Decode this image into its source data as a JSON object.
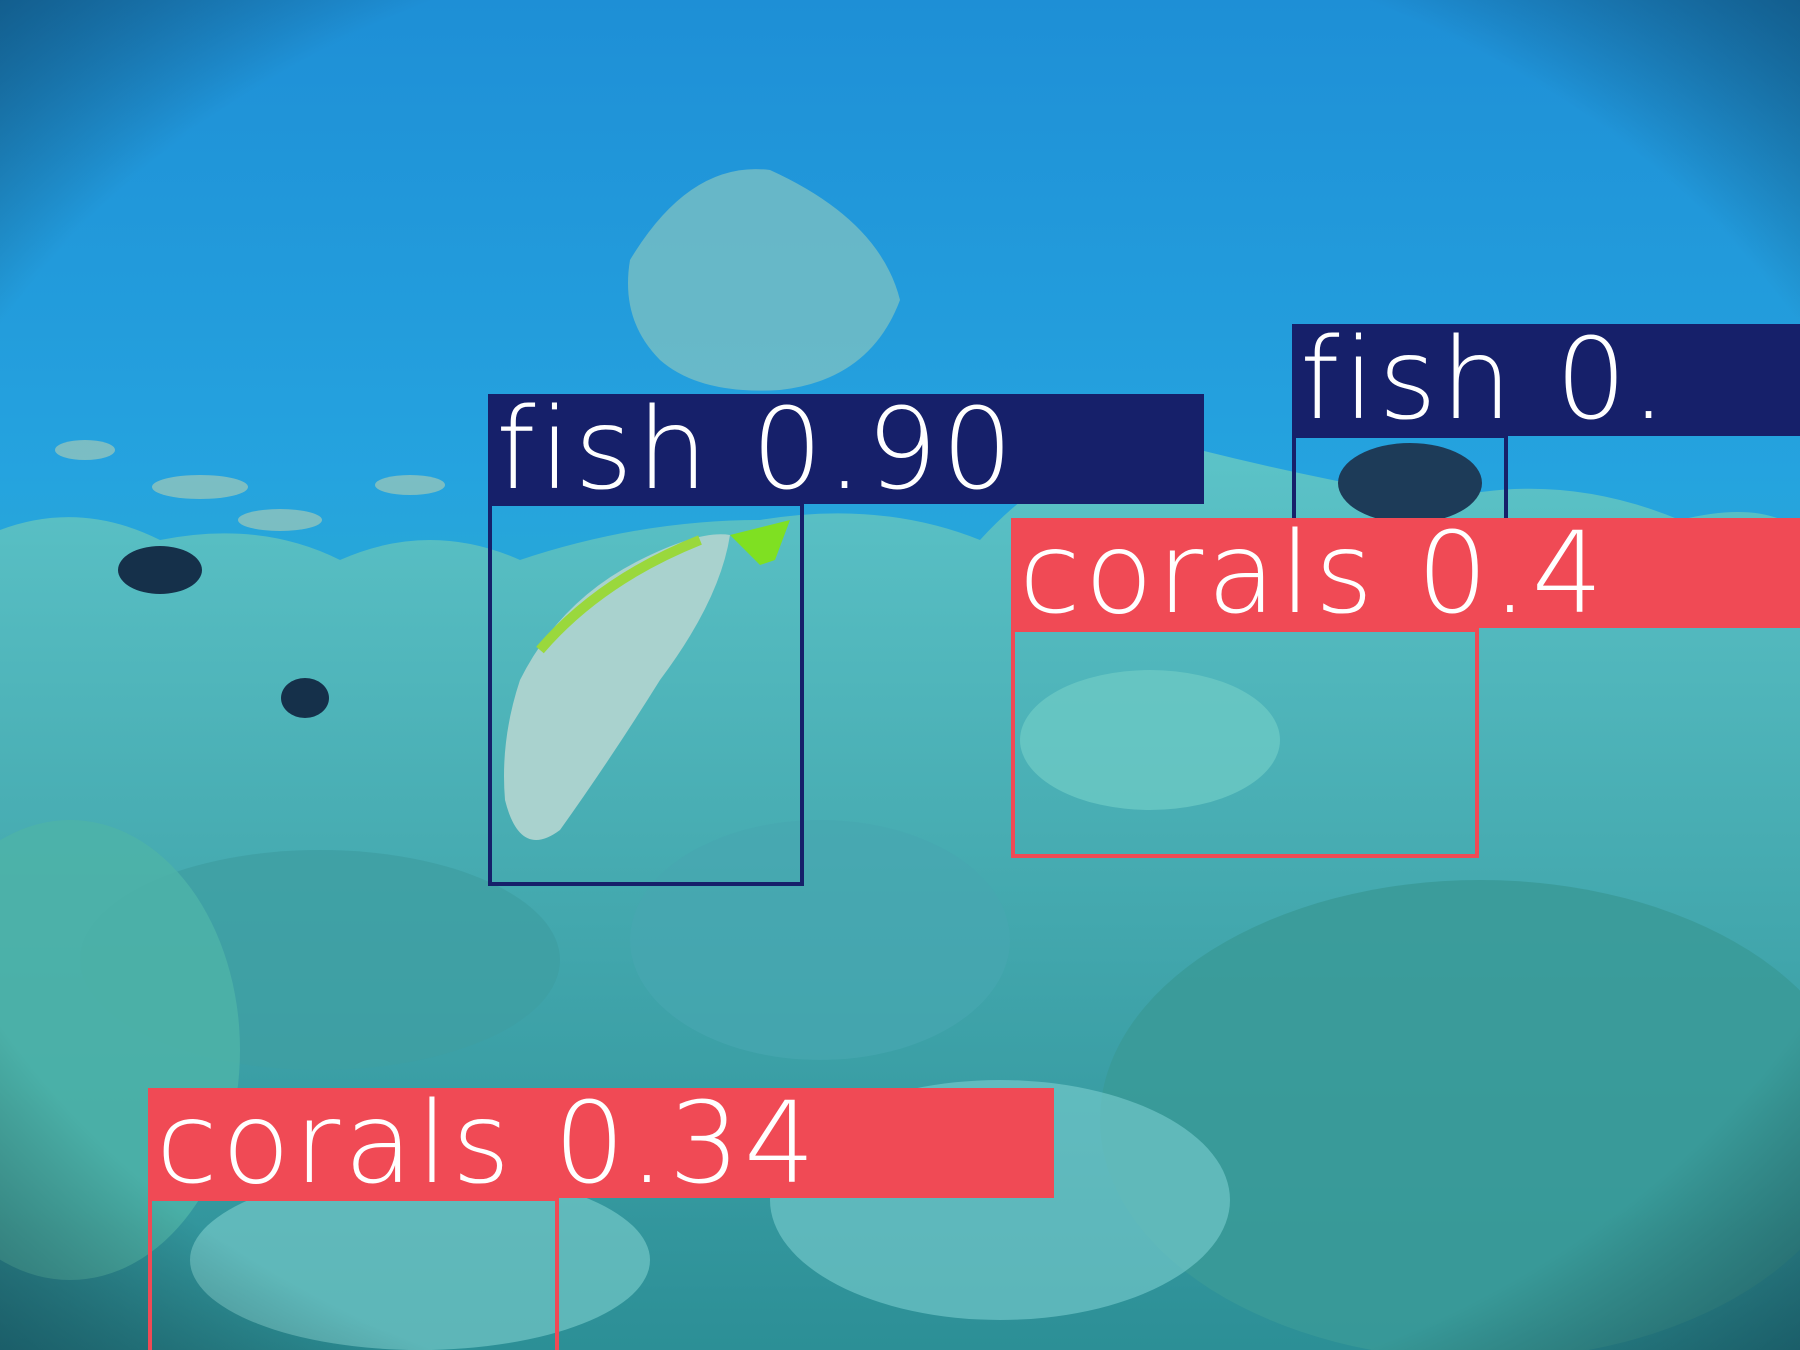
{
  "detections": [
    {
      "class": "fish",
      "label": "fish 0.90",
      "score": 0.9,
      "color": "#16206a"
    },
    {
      "class": "fish",
      "label": "fish 0.",
      "color": "#16206a"
    },
    {
      "class": "corals",
      "label": "corals 0.4",
      "color": "#f04a55"
    },
    {
      "class": "corals",
      "label": "corals 0.34",
      "score": 0.34,
      "color": "#f04a55"
    }
  ]
}
